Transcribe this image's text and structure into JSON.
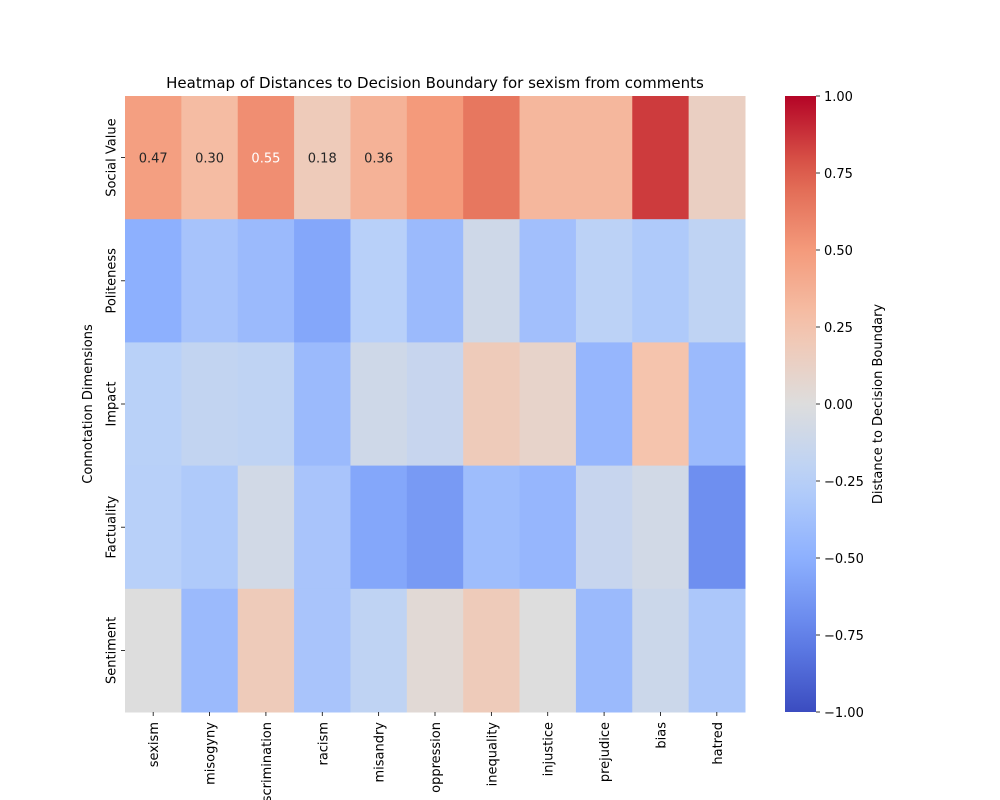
{
  "chart_data": {
    "type": "heatmap",
    "title": "Heatmap of Distances to Decision Boundary for sexism from comments",
    "xlabel": "",
    "ylabel": "Connotation Dimensions",
    "x_categories": [
      "sexism",
      "misogyny",
      "discrimination",
      "racism",
      "misandry",
      "oppression",
      "inequality",
      "injustice",
      "prejudice",
      "bias",
      "hatred"
    ],
    "y_categories": [
      "Social Value",
      "Politeness",
      "Impact",
      "Factuality",
      "Sentiment"
    ],
    "values": [
      [
        0.47,
        0.3,
        0.55,
        0.18,
        0.36,
        0.5,
        0.65,
        0.33,
        0.33,
        0.85,
        0.14
      ],
      [
        -0.5,
        -0.35,
        -0.42,
        -0.55,
        -0.25,
        -0.42,
        -0.1,
        -0.38,
        -0.22,
        -0.3,
        -0.2
      ],
      [
        -0.24,
        -0.18,
        -0.2,
        -0.42,
        -0.1,
        -0.15,
        0.18,
        0.1,
        -0.45,
        0.25,
        -0.42
      ],
      [
        -0.25,
        -0.3,
        -0.08,
        -0.34,
        -0.55,
        -0.62,
        -0.4,
        -0.45,
        -0.15,
        -0.08,
        -0.68
      ],
      [
        0.0,
        -0.42,
        0.18,
        -0.34,
        -0.2,
        0.04,
        0.18,
        0.0,
        -0.42,
        -0.12,
        -0.32
      ]
    ],
    "annotations": [
      {
        "row": 0,
        "col": 0,
        "text": "0.47"
      },
      {
        "row": 0,
        "col": 1,
        "text": "0.30"
      },
      {
        "row": 0,
        "col": 2,
        "text": "0.55"
      },
      {
        "row": 0,
        "col": 3,
        "text": "0.18"
      },
      {
        "row": 0,
        "col": 4,
        "text": "0.36"
      }
    ],
    "colormap": "coolwarm",
    "vmin": -1.0,
    "vmax": 1.0,
    "colorbar": {
      "label": "Distance to Decision Boundary",
      "ticks": [
        "1.00",
        "0.75",
        "0.50",
        "0.25",
        "0.00",
        "−0.25",
        "−0.50",
        "−0.75",
        "−1.00"
      ],
      "tick_values": [
        1.0,
        0.75,
        0.5,
        0.25,
        0.0,
        -0.25,
        -0.5,
        -0.75,
        -1.0
      ]
    }
  }
}
